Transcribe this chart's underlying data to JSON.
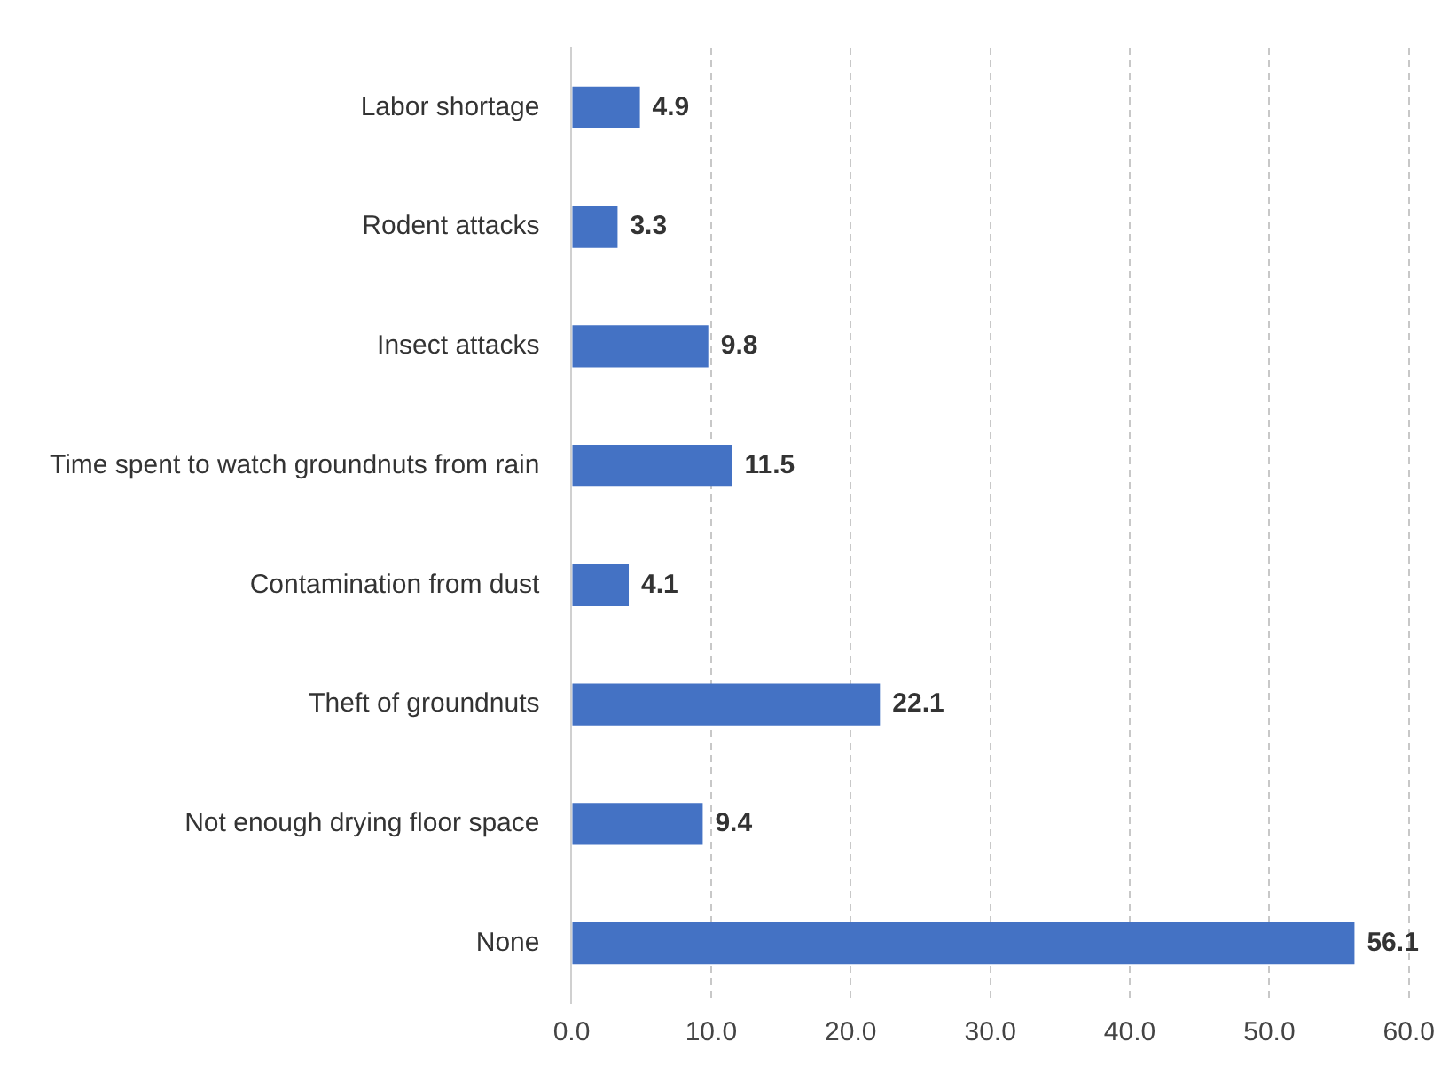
{
  "chart_data": {
    "type": "bar",
    "orientation": "horizontal",
    "categories": [
      "Labor shortage",
      "Rodent attacks",
      "Insect attacks",
      "Time spent to watch groundnuts from rain",
      "Contamination from dust",
      "Theft of groundnuts",
      "Not enough drying floor space",
      "None"
    ],
    "values": [
      4.9,
      3.3,
      9.8,
      11.5,
      4.1,
      22.1,
      9.4,
      56.1
    ],
    "color": "#4472c4",
    "xlim": [
      0,
      60
    ],
    "xticks": [
      {
        "value": 0,
        "label": "0.0"
      },
      {
        "value": 10,
        "label": "10.0"
      },
      {
        "value": 20,
        "label": "20.0"
      },
      {
        "value": 30,
        "label": "30.0"
      },
      {
        "value": 40,
        "label": "40.0"
      },
      {
        "value": 50,
        "label": "50.0"
      },
      {
        "value": 60,
        "label": "60.0"
      }
    ],
    "grid": "x",
    "line_style": "dashed",
    "data_labels": true,
    "legend": false
  }
}
